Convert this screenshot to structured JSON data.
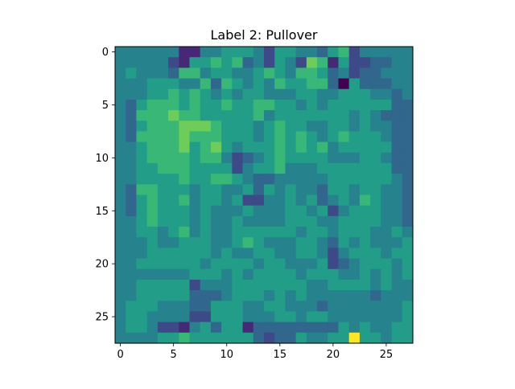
{
  "chart_data": {
    "type": "heatmap",
    "title": "Label 2: Pullover",
    "xlabel": "",
    "ylabel": "",
    "rows": 28,
    "cols": 28,
    "colormap": "viridis",
    "vmin": 0,
    "vmax": 1,
    "xlim": [
      -0.5,
      27.5
    ],
    "ylim": [
      27.5,
      -0.5
    ],
    "xticks": [
      0,
      5,
      10,
      15,
      20,
      25
    ],
    "yticks": [
      0,
      5,
      10,
      15,
      20,
      25
    ],
    "grid": false,
    "values_encoding": "one string per row, 28 characters each; each character is a digit 0-9 giving the cell value in tenths of the color range",
    "values": [
      "4444441144555425544356244444",
      "4444421556563425427615223344",
      "4544436645544565466534233444",
      "4445554463654546556630533344",
      "4445565654545544455445554434",
      "4356665655655665545455555533",
      "4366676655555645555555454333",
      "4356667776555456554455454433",
      "4366667666555456565456555433",
      "4456667567545556565645555533",
      "4456666566423456555544455433",
      "4455666555524556444555555533",
      "4455556556654334444455555543",
      "4366555455445354544355455443",
      "4356556455452244545345465443",
      "4356555454445444554524555443",
      "4456555454454444555445555443",
      "4455456454455555545545554454",
      "4445445554456544455435454445",
      "4445555554544554455424555455",
      "4455555545555455444523455545",
      "4444444555454555545554454545",
      "4455555244455555554455554544",
      "4455555333455545454444443444",
      "4555444335554455444344444445",
      "4554444225554445545544444445",
      "4554221453551333333335454455",
      "4444556555555323354455955455"
    ]
  }
}
